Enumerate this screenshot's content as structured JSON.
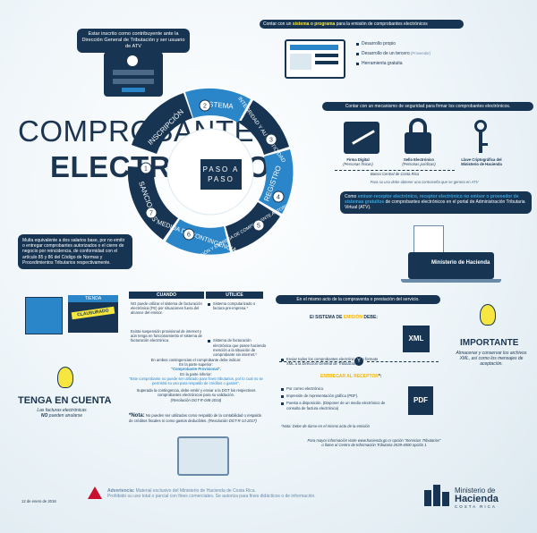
{
  "title": {
    "line1": "COMPROBANTES",
    "line2": "ELECTRÓNICOS"
  },
  "center": {
    "line1": "PASO A",
    "line2": "PASO"
  },
  "steps": [
    {
      "num": "1",
      "label": "INSCRIPCIÓN"
    },
    {
      "num": "2",
      "label": "SISTEMA"
    },
    {
      "num": "3",
      "label": "INTEGRIDAD Y AUTENTICIDAD"
    },
    {
      "num": "4",
      "label": "REGISTRO"
    },
    {
      "num": "5",
      "label": "EMISIÓN Y ENTREGA DE COMPROBANTE AUTORIZADO"
    },
    {
      "num": "6",
      "label": "MEDIDA DE CONTINGENCIA"
    },
    {
      "num": "7",
      "label": "SANCIONES"
    }
  ],
  "inscripcion": {
    "text": "Estar inscrito como contribuyente ante la Dirección General de Tributación y ser usuario de ATV"
  },
  "sistema": {
    "heading_pre": "Contar con un ",
    "heading_hl": "sistema o programa",
    "heading_post": " para la emisión de comprobantes electrónicos",
    "items": [
      {
        "text": "Desarrollo propio",
        "note": ""
      },
      {
        "text": "Desarrollo de un tercero",
        "note": "(Proveedor)"
      },
      {
        "text": "Herramienta gratuita",
        "note": ""
      }
    ]
  },
  "seguridad": {
    "heading": "Contar con un mecanismo de seguridad para firmar los comprobantes electrónicos.",
    "items": [
      {
        "label": "Firma Digital",
        "sub": "(Personas físicas)"
      },
      {
        "label": "Sello Electrónico",
        "sub": "(Personas jurídicas)"
      },
      {
        "label": "Llave Criptográfica del Ministerio de Hacienda",
        "sub": ""
      }
    ],
    "banco": "Banco Central de Costa Rica",
    "atv_note": "Para su uso debe obtener una contraseña que se genera en ATV"
  },
  "registro": {
    "pre": "Como ",
    "hl": "emisor-receptor electrónico, receptor electrónico no emisor o proveedor de sistemas gratuitos",
    "post": " de comprobantes electrónicos en el portal de Administración Tributaria Virtual (ATV).",
    "logo_text": "Ministerio de Hacienda"
  },
  "emision": {
    "heading": "En el mismo acto de la compraventa o prestación del servicio.",
    "sistema_pre": "El SISTEMA DE ",
    "sistema_hl": "EMISIÓN",
    "sistema_post": " DEBE:",
    "sistema_item": "Enviar todos los comprobantes electrónicos en formato XML a la Dirección General de Tributación.",
    "y": "Y",
    "entregar_hl": "ENTREGAR AL RECEPTOR",
    "entregar_post": "*:",
    "entregar_items": [
      "Por correo electrónico.",
      "Impresión de representación gráfica (PDF).",
      "Puesta a disposición. (Disponer de un medio electrónico de consulta de factura electrónica)"
    ],
    "nota": "*Nota: Debe de darse en el mismo acto de la emisión",
    "xml_label": "XML",
    "pdf_label": "PDF"
  },
  "importante": {
    "heading": "IMPORTANTE",
    "text": "Almacenar y conservar los archivos XML, así como los mensajes de aceptación."
  },
  "sanciones": {
    "text": "Multa equivalente a dos salarios base, por no emitir o entregar comprobantes autorizados o el cierre de negocio por reincidencia, de conformidad con el artículo 85 y 86 del Código de Normas y Procedimientos Tributarios respectivamente.",
    "tienda": "TIENDA",
    "clausurado": "CLAUSURADO"
  },
  "contingencia": {
    "cuando": "CUANDO",
    "utilice": "UTILICE",
    "rows": [
      {
        "cuando": "NO puede utilizar el sistema de facturación electrónica (FE) por situaciones fuera del alcance del emisor.",
        "utilice": "Sistema computarizado o factura pre-impresa.*"
      },
      {
        "cuando": "Exista suspensión provisional de internet y aún tenga en funcionamiento el sistema de facturación electrónica.",
        "utilice": "Sistema de facturación electrónica que posee haciendo mención a la situación de comprobante sin internet.*"
      }
    ],
    "ambos": "En ambos contingencias el comprobante debe indicar:",
    "superior": "En la parte superior:",
    "superior_text": "\"Comprobante Provisional\".",
    "inferior": "En la parte inferior:",
    "inferior_text": "\"Este comprobante no puede ser utilizado para fines tributarios, por lo cual no se permitirá su uso para respaldo de créditos o gastos\".",
    "superada": "Superada la contingencia, debe emitir y enviar a la DGT los respectivos comprobantes electrónicos para su validación.",
    "resolucion1": "(Resolución DGT-R-048-2016)",
    "nota_lbl": "*Nota:",
    "nota_text": "No pueden ser utilizadas como respaldo de la contabilidad o respaldo de créditos fiscales ni como gastos deducibles.",
    "resolucion2": "(Resolución DGT-R-13-2017)"
  },
  "cuenta": {
    "heading": "TENGA EN CUENTA",
    "line1": "Las facturas electrónicas",
    "line2_bold": "NO",
    "line2": " pueden anularse"
  },
  "info": {
    "line1": "Para mayor información visite www.hacienda.go.cr opción \"Servicios Tributarios\"",
    "line2": "o llame al Centro de Información Tributaria 2539-4000 opción 1"
  },
  "footer": {
    "date": "12 de enero de 2018",
    "adv_lbl": "Advertencia:",
    "adv_text": " Material exclusivo del Ministerio de Hacienda de Costa Rica.",
    "adv_text2": "Prohibido su uso total o parcial con fines comerciales. Se autoriza para fines didácticos o de información.",
    "logo_line1": "Ministerio de",
    "logo_line2": "Hacienda",
    "logo_line3": "COSTA RICA"
  },
  "colors": {
    "navy": "#173552",
    "blue": "#2a86c8",
    "light_blue": "#3aa3dc",
    "yellow": "#f7e640",
    "cyan": "#2a9fd6"
  }
}
